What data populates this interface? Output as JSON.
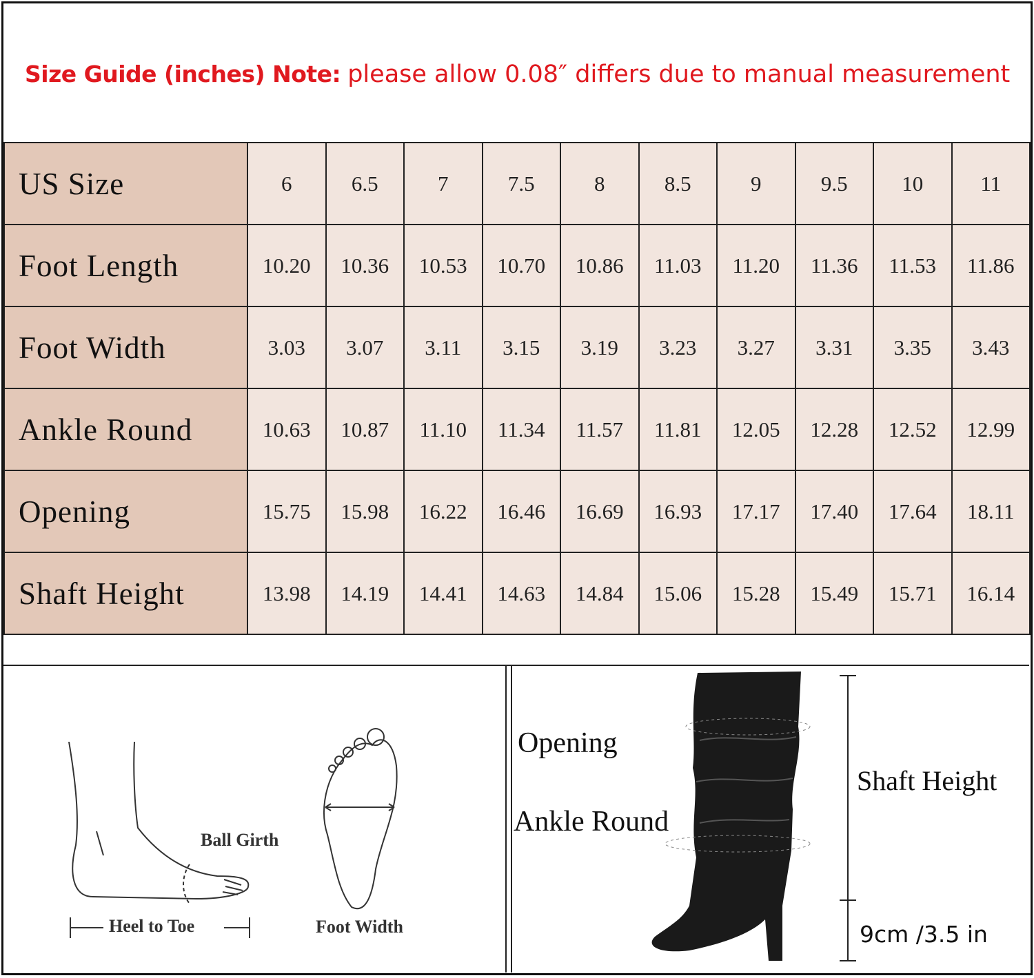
{
  "title": {
    "prefix": "Size Guide (inches) Note:",
    "note": "please allow 0.08″ differs due to manual measurement",
    "color": "#e0191f"
  },
  "colors": {
    "label_cell": "#e3c8b8",
    "value_cell": "#f2e5de"
  },
  "chart_data": {
    "type": "table",
    "rows": [
      {
        "label": "US Size",
        "values": [
          "6",
          "6.5",
          "7",
          "7.5",
          "8",
          "8.5",
          "9",
          "9.5",
          "10",
          "11"
        ]
      },
      {
        "label": "Foot Length",
        "values": [
          "10.20",
          "10.36",
          "10.53",
          "10.70",
          "10.86",
          "11.03",
          "11.20",
          "11.36",
          "11.53",
          "11.86"
        ]
      },
      {
        "label": "Foot Width",
        "values": [
          "3.03",
          "3.07",
          "3.11",
          "3.15",
          "3.19",
          "3.23",
          "3.27",
          "3.31",
          "3.35",
          "3.43"
        ]
      },
      {
        "label": "Ankle Round",
        "values": [
          "10.63",
          "10.87",
          "11.10",
          "11.34",
          "11.57",
          "11.81",
          "12.05",
          "12.28",
          "12.52",
          "12.99"
        ]
      },
      {
        "label": "Opening",
        "values": [
          "15.75",
          "15.98",
          "16.22",
          "16.46",
          "16.69",
          "16.93",
          "17.17",
          "17.40",
          "17.64",
          "18.11"
        ]
      },
      {
        "label": "Shaft Height",
        "values": [
          "13.98",
          "14.19",
          "14.41",
          "14.63",
          "14.84",
          "15.06",
          "15.28",
          "15.49",
          "15.71",
          "16.14"
        ]
      }
    ]
  },
  "foot_diagram": {
    "ball_girth": "Ball Girth",
    "heel_to_toe": "Heel to Toe",
    "foot_width": "Foot Width"
  },
  "boot_diagram": {
    "opening": "Opening",
    "ankle_round": "Ankle Round",
    "shaft_height": "Shaft Height",
    "heel_height": "9cm /3.5 in"
  }
}
